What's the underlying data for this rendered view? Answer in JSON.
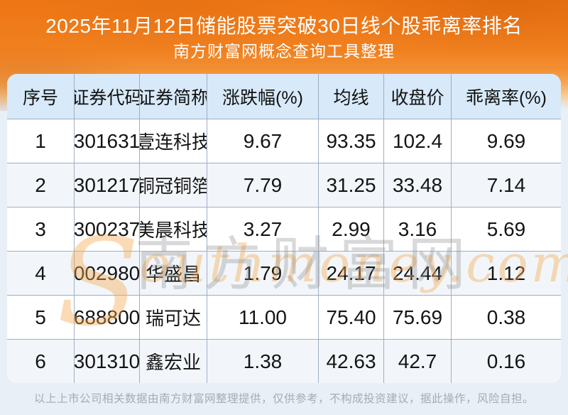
{
  "banner": {
    "title_line1": "2025年11月12日储能股票突破30日线个股乖离率排名",
    "title_line2": "南方财富网概念查询工具整理"
  },
  "chart_data": {
    "type": "table",
    "title": "2025年11月12日储能股票突破30日线个股乖离率排名",
    "subtitle": "南方财富网概念查询工具整理",
    "columns": [
      "序号",
      "证券代码",
      "证券简称",
      "涨跌幅(%)",
      "均线",
      "收盘价",
      "乖离率(%)"
    ],
    "rows": [
      [
        "1",
        "301631",
        "壹连科技",
        "9.67",
        "93.35",
        "102.4",
        "9.69"
      ],
      [
        "2",
        "301217",
        "铜冠铜箔",
        "7.79",
        "31.25",
        "33.48",
        "7.14"
      ],
      [
        "3",
        "300237",
        "美晨科技",
        "3.27",
        "2.99",
        "3.16",
        "5.69"
      ],
      [
        "4",
        "002980",
        "华盛昌",
        "1.79",
        "24.17",
        "24.44",
        "1.12"
      ],
      [
        "5",
        "688800",
        "瑞可达",
        "11.00",
        "75.40",
        "75.69",
        "0.38"
      ],
      [
        "6",
        "301310",
        "鑫宏业",
        "1.38",
        "42.63",
        "42.7",
        "0.16"
      ]
    ]
  },
  "watermark": {
    "cn": "南方财富网",
    "latin_initial": "S",
    "latin_rest": "outhmoney.com"
  },
  "footer": {
    "disclaimer": "以上上市公司相关数据由南方财富网整理提供，仅供参考，不构成投资建议，据此操作，风险自担。"
  },
  "colors": {
    "banner_orange": "#f0801f",
    "header_bg": "#d8e9f9",
    "row_alt_bg": "#f2f6fa",
    "page_bg": "#e8eff7",
    "border": "#9fafc4",
    "title_text": "#ffffff",
    "footer_text": "#a6abb4",
    "watermark_gray": "#8c8c8c",
    "watermark_orange": "#f6aa52"
  }
}
